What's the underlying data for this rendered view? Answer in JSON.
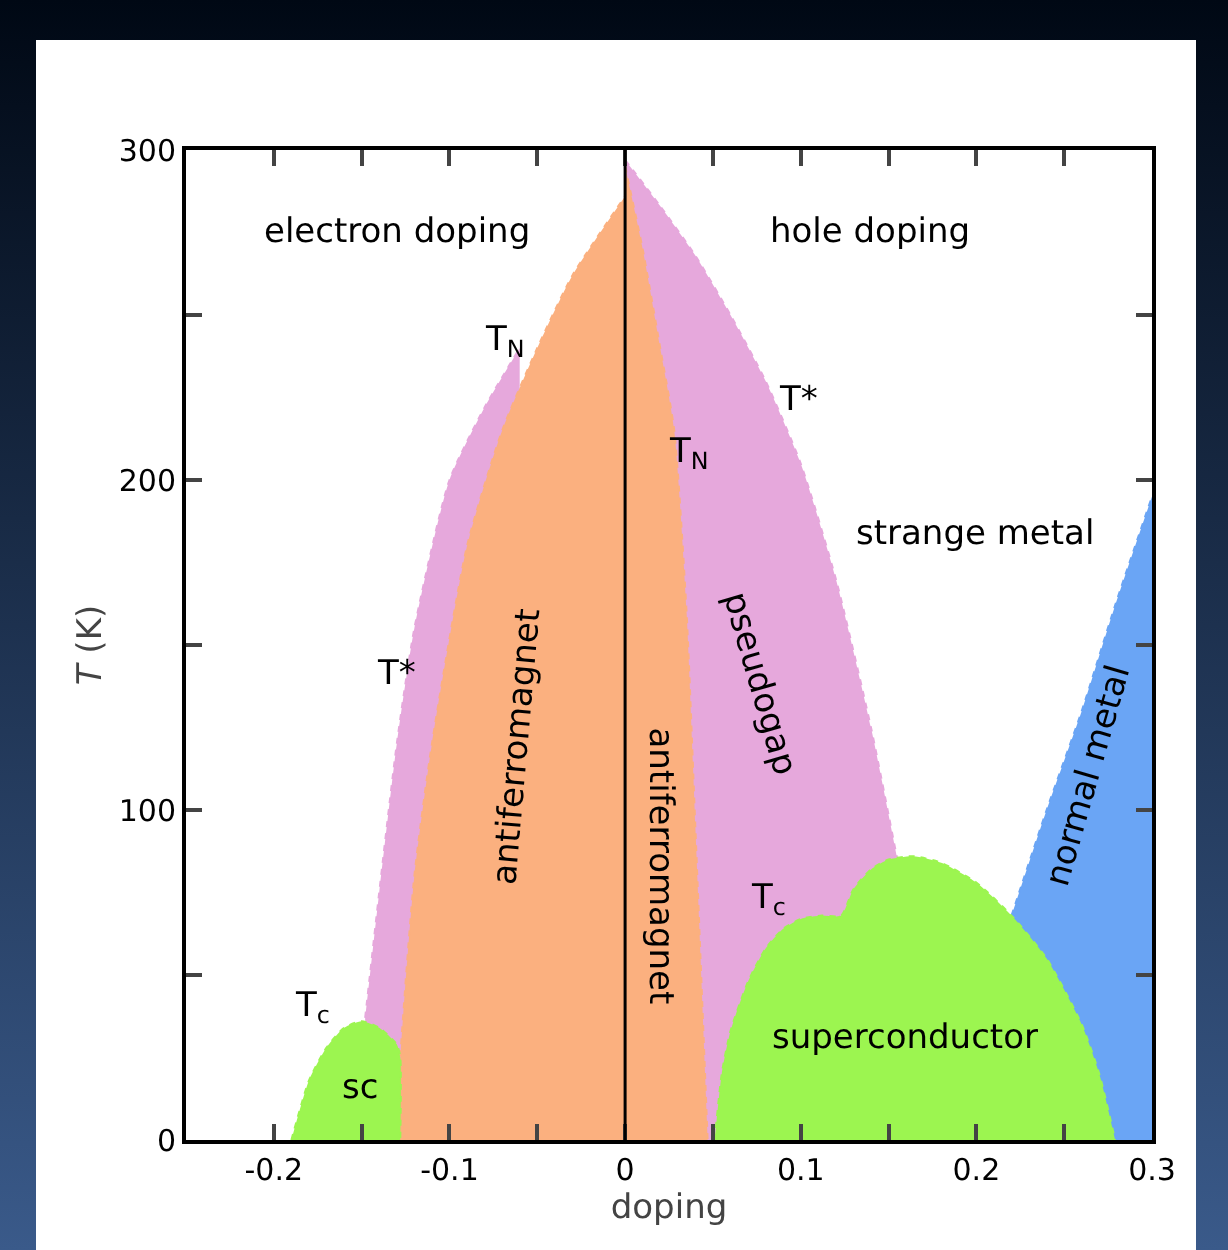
{
  "chart_data": {
    "type": "area",
    "xlabel": "doping",
    "ylabel": "T (K)",
    "xlim": [
      -0.25,
      0.3
    ],
    "xticks": [
      {
        "value": -0.25,
        "label": null
      },
      -0.2,
      {
        "value": -0.15,
        "label": null
      },
      -0.1,
      {
        "value": -0.05,
        "label": null
      },
      0,
      {
        "value": 0.05,
        "label": null
      },
      0.1,
      {
        "value": 0.15,
        "label": null
      },
      0.2,
      {
        "value": 0.25,
        "label": null
      },
      0.3
    ],
    "ylim": [
      0,
      300
    ],
    "yticks": [
      0,
      {
        "value": 50,
        "label": null
      },
      100,
      {
        "value": 150,
        "label": null
      },
      200,
      {
        "value": 250,
        "label": null
      },
      300
    ],
    "grid": false,
    "line_style": "dotted",
    "series": [
      {
        "color": "#e6a8dc",
        "x": [
          -0.148,
          -0.14,
          -0.13,
          -0.12,
          -0.1,
          -0.08,
          -0.06
        ],
        "values": [
          37,
          75,
          120,
          155,
          200,
          222,
          240
        ]
      },
      {
        "color": "#e6a8dc",
        "x": [
          0,
          0.02,
          0.04,
          0.06,
          0.08,
          0.1,
          0.12,
          0.14,
          0.155
        ],
        "values": [
          297,
          283,
          268,
          250,
          230,
          205,
          170,
          125,
          85
        ]
      },
      {
        "color": "#6aa5f5",
        "x": [
          0.22,
          0.24,
          0.26,
          0.279,
          0.3
        ],
        "values": [
          68,
          100,
          130,
          162,
          195
        ]
      },
      {
        "color": "#fbb07f",
        "x": [
          -0.13,
          -0.128,
          -0.12,
          -0.11,
          -0.09,
          -0.07,
          -0.05,
          -0.03,
          0
        ],
        "values": [
          0,
          25,
          80,
          120,
          180,
          215,
          240,
          262,
          286
        ]
      },
      {
        "color": "#fbb07f",
        "x": [
          0,
          0.01,
          0.02,
          0.028,
          0.035,
          0.04,
          0.047
        ],
        "values": [
          295,
          270,
          240,
          215,
          160,
          95,
          0
        ]
      },
      {
        "color": "#9cf550",
        "x": [
          -0.19,
          -0.18,
          -0.17,
          -0.16,
          -0.15,
          -0.14,
          -0.13,
          -0.128,
          -0.128
        ],
        "values": [
          0,
          18,
          28,
          34,
          36,
          34,
          29,
          25,
          0
        ]
      },
      {
        "color": "#9cf550",
        "x": [
          0.051,
          0.055,
          0.06,
          0.07,
          0.08,
          0.09,
          0.1,
          0.112,
          0.123,
          0.13,
          0.14,
          0.15,
          0.164,
          0.18,
          0.2,
          0.22,
          0.24,
          0.26,
          0.27,
          0.279
        ],
        "values": [
          0,
          20,
          33,
          48,
          58,
          64,
          67,
          68,
          68,
          76,
          82,
          85,
          86,
          84,
          78,
          68,
          55,
          35,
          20,
          0
        ]
      }
    ],
    "ref_lines": [
      {
        "axis": "x",
        "value": 0,
        "color": "#000000",
        "line_style": "solid"
      }
    ],
    "annotations": [
      "electron doping",
      "hole doping",
      "T$_{N}$",
      "T*",
      "T$_{c}$",
      "sc",
      "antiferromagnet",
      "antiferromagnet",
      "T$_{N}$",
      "T*",
      "strange metal",
      "pseudogap",
      "T$_{c}$",
      "superconductor",
      "normal metal"
    ]
  }
}
